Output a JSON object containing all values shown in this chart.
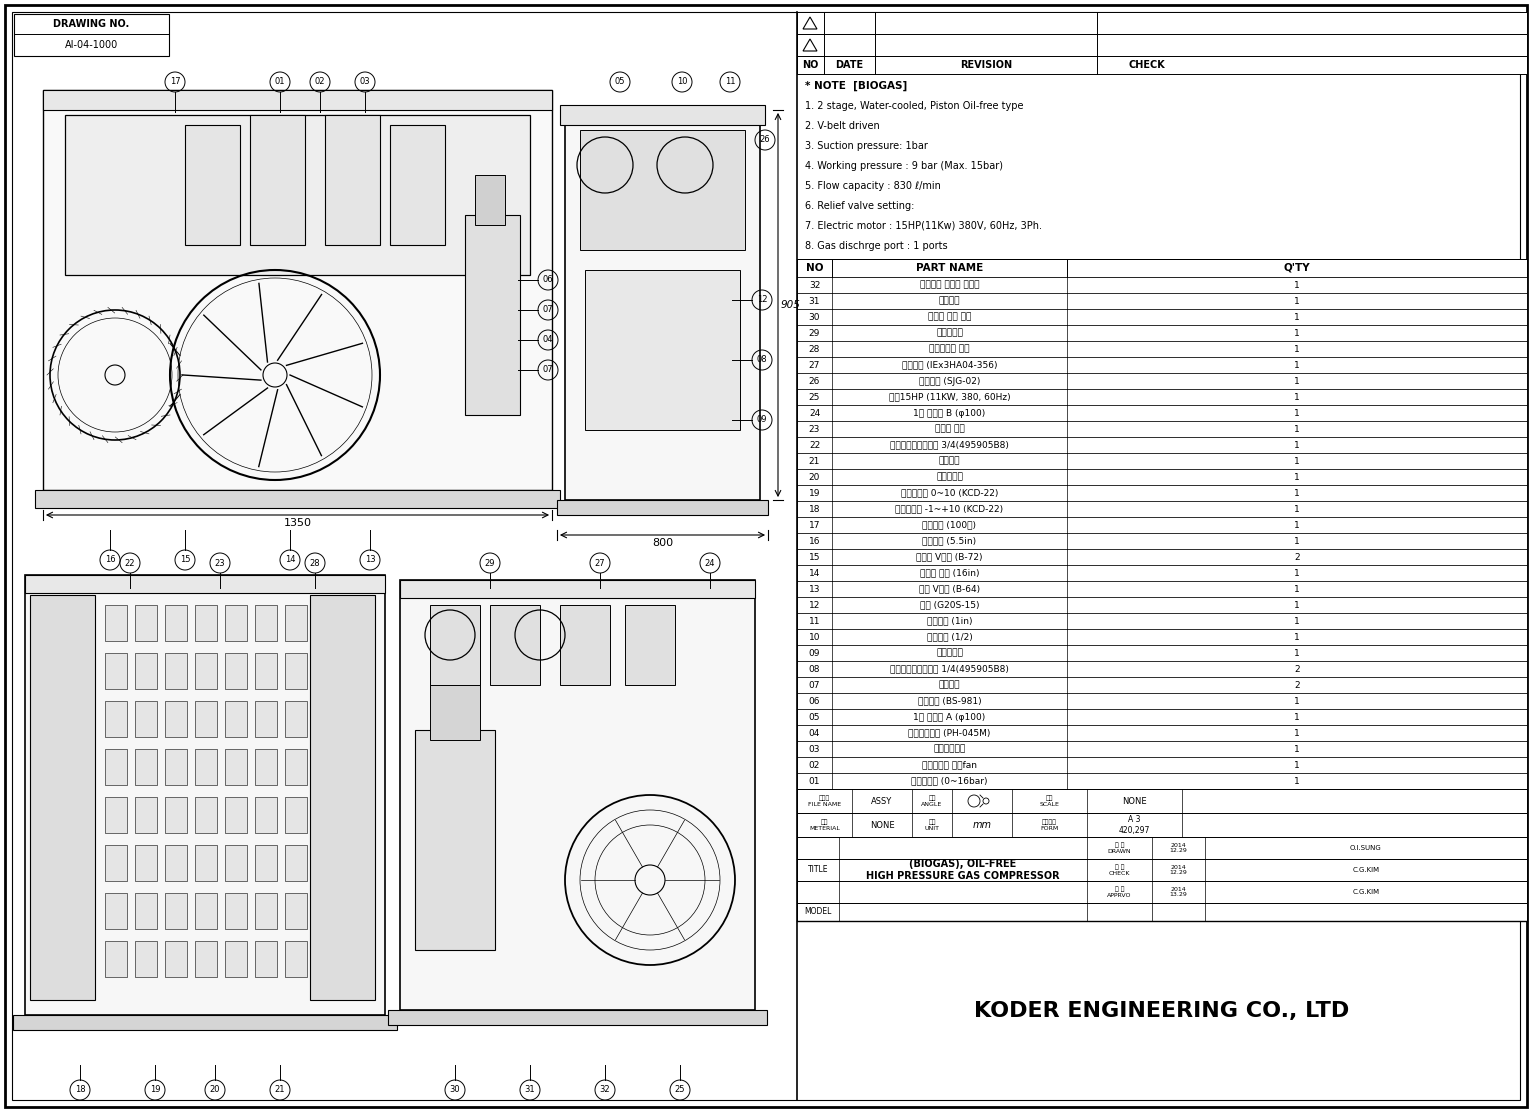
{
  "bg_color": "#ffffff",
  "border_color": "#000000",
  "drawing_no_label": "DRAWING NO.",
  "drawing_no": "AI-04-1000",
  "company": "KODER ENGINEERING CO., LTD",
  "notes": [
    "* NOTE  [BIOGAS]",
    "1. 2 stage, Water-cooled, Piston Oil-free type",
    "2. V-belt driven",
    "3. Suction pressure: 1bar",
    "4. Working pressure : 9 bar (Max. 15bar)",
    "5. Flow capacity : 830 ℓ/min",
    "6. Relief valve setting:",
    "7. Electric motor : 15HP(11Kw) 380V, 60Hz, 3Ph.",
    "8. Gas dischrge port : 1 ports"
  ],
  "parts": [
    [
      "32",
      "오일차단 가이드 실린더",
      "1"
    ],
    [
      "31",
      "워터재탯",
      "1"
    ],
    [
      "30",
      "실린더 밸브 헤드",
      "1"
    ],
    [
      "29",
      "라디에이터",
      "1"
    ],
    [
      "28",
      "라디에이터 커버",
      "1"
    ],
    [
      "27",
      "냉각모터 (IEx3HA04-356)",
      "1"
    ],
    [
      "26",
      "토입필터 (SJG-02)",
      "1"
    ],
    [
      "25",
      "모터15HP (11KW, 380, 60Hz)",
      "1"
    ],
    [
      "24",
      "1단 실린더 B (φ100)",
      "1"
    ],
    [
      "23",
      "냉각수 코일",
      "1"
    ],
    [
      "22",
      "흡입솔레노이드밸브 3/4(495905B8)",
      "1"
    ],
    [
      "21",
      "오일부기",
      "1"
    ],
    [
      "20",
      "오일드레인",
      "1"
    ],
    [
      "19",
      "자동스위치 0~10 (KCD-22)",
      "1"
    ],
    [
      "18",
      "자동스위치 -1~+10 (KCD-22)",
      "1"
    ],
    [
      "17",
      "온도센서 (100즌)",
      "1"
    ],
    [
      "16",
      "모터풀리 (5.5in)",
      "1"
    ],
    [
      "15",
      "전동기 V뱨트 (B-72)",
      "2"
    ],
    [
      "14",
      "압욕기 풀리 (16in)",
      "1"
    ],
    [
      "13",
      "펀프 V뱨트 (B-64)",
      "1"
    ],
    [
      "12",
      "툴티 (G20S-15)",
      "1"
    ],
    [
      "11",
      "흡입팸브 (1in)",
      "1"
    ],
    [
      "10",
      "도출팸브 (1/2)",
      "1"
    ],
    [
      "09",
      "드레인팸브",
      "1"
    ],
    [
      "08",
      "오토솔레노이드밸브 1/4(495905B8)",
      "2"
    ],
    [
      "07",
      "체크밸브",
      "2"
    ],
    [
      "06",
      "안전밸브 (BS-981)",
      "1"
    ],
    [
      "05",
      "1단 실린더 A (φ100)",
      "1"
    ],
    [
      "04",
      "워터순환펀프 (PH-045M)",
      "1"
    ],
    [
      "03",
      "냉각쿞러장치",
      "1"
    ],
    [
      "02",
      "라디에이터 냉각fan",
      "1"
    ],
    [
      "01",
      "입력게이지 (0~16bar)",
      "1"
    ]
  ]
}
